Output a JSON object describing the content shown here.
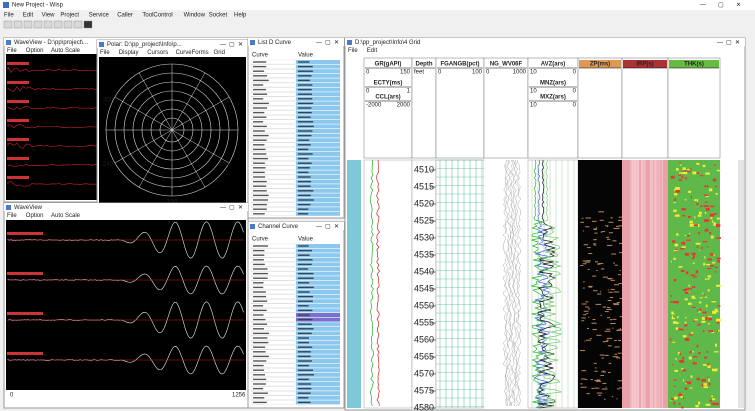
{
  "app": {
    "title": "New Project - Wisp",
    "menu": [
      "File",
      "Edit",
      "View",
      "Project",
      "Service",
      "Caller",
      "ToolControl",
      "Window",
      "Socket",
      "Help"
    ]
  },
  "wave_top": {
    "title": "WaveView - D:\\pp\\project\\...",
    "menu": [
      "File",
      "Option",
      "Auto Scale"
    ]
  },
  "polar": {
    "title": "Polar: D:\\pp_project\\Info\\p...",
    "menu": [
      "File",
      "Display",
      "Cursors",
      "CurveForms",
      "Grid"
    ],
    "angles": [
      "300",
      "240",
      "120",
      "150"
    ]
  },
  "list_top": {
    "title": "List D Curve",
    "columns": [
      "Curve",
      "Value"
    ]
  },
  "wave_bottom": {
    "title": "WaveView",
    "menu": [
      "File",
      "Option",
      "Auto Scale"
    ],
    "axis": [
      "0",
      "1256"
    ]
  },
  "list_bottom": {
    "title": "Channel Curve",
    "columns": [
      "Curve",
      "Value"
    ]
  },
  "log": {
    "title": "D:\\pp_project\\Info\\4 Grid",
    "menu": [
      "File",
      "Edit"
    ],
    "headers": [
      {
        "name": "GR(gAPI)",
        "left": "0",
        "right": "150"
      },
      {
        "name": "Depth",
        "left": "feet",
        "right": ""
      },
      {
        "name": "FGANGB(pct)",
        "left": "0",
        "right": "100"
      },
      {
        "name": "NG_WV06F",
        "left": "0",
        "right": "1000"
      },
      {
        "name": "AVZ(ars)",
        "left": "10",
        "right": "0"
      },
      {
        "name": "ZP(ms)",
        "left": "",
        "right": ""
      },
      {
        "name": "IRP(s)",
        "left": "",
        "right": ""
      },
      {
        "name": "THK(s)",
        "left": "",
        "right": ""
      }
    ],
    "sub_headers": [
      {
        "name": "ECTY(ms)",
        "left": "0",
        "right": "1"
      },
      {
        "name": "CCL(ars)",
        "left": "-2000",
        "right": "2000"
      },
      {
        "name": "MNZ(ars)",
        "left": "10",
        "right": "0"
      },
      {
        "name": "MXZ(ars)",
        "left": "10",
        "right": "0"
      }
    ],
    "depths": [
      "4510",
      "4515",
      "4520",
      "4525",
      "4530",
      "4535",
      "4540",
      "4545",
      "4550",
      "4555",
      "4560",
      "4565",
      "4570",
      "4575",
      "4580"
    ]
  }
}
